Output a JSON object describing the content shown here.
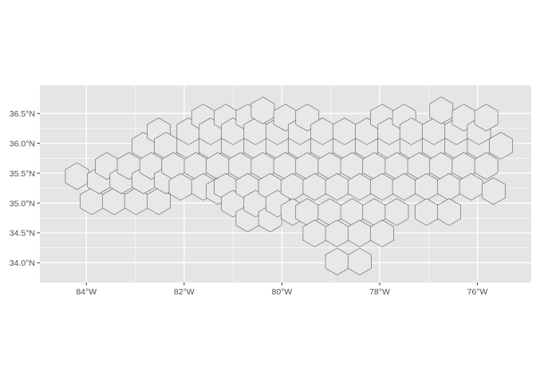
{
  "chart_data": {
    "type": "map",
    "xlim": [
      -84.95,
      -74.9
    ],
    "ylim": [
      33.67,
      36.97
    ],
    "x_ticks": [
      {
        "value": -84,
        "label": "84°W"
      },
      {
        "value": -82,
        "label": "82°W"
      },
      {
        "value": -80,
        "label": "80°W"
      },
      {
        "value": -78,
        "label": "78°W"
      },
      {
        "value": -76,
        "label": "76°W"
      }
    ],
    "y_ticks": [
      {
        "value": 34.0,
        "label": "34.0°N"
      },
      {
        "value": 34.5,
        "label": "34.5°N"
      },
      {
        "value": 35.0,
        "label": "35.0°N"
      },
      {
        "value": 35.5,
        "label": "35.5°N"
      },
      {
        "value": 36.0,
        "label": "36.0°N"
      },
      {
        "value": 36.5,
        "label": "36.5°N"
      }
    ],
    "grid": true,
    "colors": {
      "panel_background": "#e5e5e5",
      "grid_major": "#ffffff",
      "hex_fill": "#e8e8e8",
      "hex_stroke": "#6e6e6e",
      "tick_text": "#4d4d4d"
    },
    "hex_cell_centers": [
      [
        -84.19,
        35.45
      ],
      [
        -83.89,
        35.03
      ],
      [
        -83.74,
        35.38
      ],
      [
        -83.58,
        35.62
      ],
      [
        -83.43,
        35.03
      ],
      [
        -83.28,
        35.38
      ],
      [
        -83.13,
        35.62
      ],
      [
        -82.98,
        35.03
      ],
      [
        -82.83,
        35.38
      ],
      [
        -82.83,
        35.96
      ],
      [
        -82.67,
        35.62
      ],
      [
        -82.52,
        35.03
      ],
      [
        -82.52,
        36.2
      ],
      [
        -82.37,
        35.38
      ],
      [
        -82.37,
        35.96
      ],
      [
        -82.22,
        35.62
      ],
      [
        -82.07,
        35.27
      ],
      [
        -81.91,
        35.96
      ],
      [
        -81.91,
        36.2
      ],
      [
        -81.76,
        35.62
      ],
      [
        -81.61,
        35.27
      ],
      [
        -81.61,
        36.43
      ],
      [
        -81.46,
        35.96
      ],
      [
        -81.46,
        36.2
      ],
      [
        -81.31,
        35.62
      ],
      [
        -81.31,
        35.2
      ],
      [
        -81.15,
        35.27
      ],
      [
        -81.15,
        36.43
      ],
      [
        -81.0,
        35.96
      ],
      [
        -81.0,
        36.2
      ],
      [
        -81.0,
        34.99
      ],
      [
        -80.85,
        35.62
      ],
      [
        -80.7,
        35.27
      ],
      [
        -80.7,
        36.43
      ],
      [
        -80.7,
        34.74
      ],
      [
        -80.54,
        35.96
      ],
      [
        -80.54,
        36.2
      ],
      [
        -80.54,
        34.99
      ],
      [
        -80.39,
        35.62
      ],
      [
        -80.39,
        36.55
      ],
      [
        -80.24,
        35.27
      ],
      [
        -80.24,
        34.74
      ],
      [
        -80.09,
        35.96
      ],
      [
        -80.09,
        36.2
      ],
      [
        -80.09,
        34.99
      ],
      [
        -79.93,
        35.62
      ],
      [
        -79.93,
        36.43
      ],
      [
        -79.78,
        35.27
      ],
      [
        -79.78,
        34.85
      ],
      [
        -79.63,
        35.96
      ],
      [
        -79.63,
        36.2
      ],
      [
        -79.48,
        35.62
      ],
      [
        -79.48,
        36.43
      ],
      [
        -79.48,
        34.85
      ],
      [
        -79.33,
        35.27
      ],
      [
        -79.33,
        34.49
      ],
      [
        -79.17,
        35.96
      ],
      [
        -79.17,
        36.2
      ],
      [
        -79.02,
        35.62
      ],
      [
        -79.02,
        34.85
      ],
      [
        -78.87,
        35.27
      ],
      [
        -78.87,
        34.49
      ],
      [
        -78.87,
        34.02
      ],
      [
        -78.72,
        35.96
      ],
      [
        -78.72,
        36.2
      ],
      [
        -78.56,
        35.62
      ],
      [
        -78.56,
        34.85
      ],
      [
        -78.41,
        35.27
      ],
      [
        -78.41,
        34.49
      ],
      [
        -78.41,
        34.02
      ],
      [
        -78.26,
        35.96
      ],
      [
        -78.26,
        36.2
      ],
      [
        -78.11,
        35.62
      ],
      [
        -78.11,
        34.85
      ],
      [
        -77.95,
        35.27
      ],
      [
        -77.95,
        34.49
      ],
      [
        -77.95,
        36.43
      ],
      [
        -77.8,
        35.96
      ],
      [
        -77.8,
        36.2
      ],
      [
        -77.65,
        35.62
      ],
      [
        -77.65,
        34.85
      ],
      [
        -77.5,
        35.27
      ],
      [
        -77.5,
        36.43
      ],
      [
        -77.35,
        35.96
      ],
      [
        -77.35,
        36.2
      ],
      [
        -77.19,
        35.62
      ],
      [
        -77.04,
        35.27
      ],
      [
        -77.04,
        34.85
      ],
      [
        -76.89,
        35.96
      ],
      [
        -76.89,
        36.2
      ],
      [
        -76.74,
        35.62
      ],
      [
        -76.74,
        36.55
      ],
      [
        -76.58,
        35.27
      ],
      [
        -76.58,
        34.85
      ],
      [
        -76.43,
        35.96
      ],
      [
        -76.43,
        36.2
      ],
      [
        -76.28,
        35.62
      ],
      [
        -76.28,
        36.43
      ],
      [
        -76.13,
        35.27
      ],
      [
        -75.97,
        35.96
      ],
      [
        -75.97,
        36.2
      ],
      [
        -75.82,
        35.62
      ],
      [
        -75.82,
        36.43
      ],
      [
        -75.67,
        35.2
      ],
      [
        -75.52,
        35.96
      ]
    ]
  }
}
